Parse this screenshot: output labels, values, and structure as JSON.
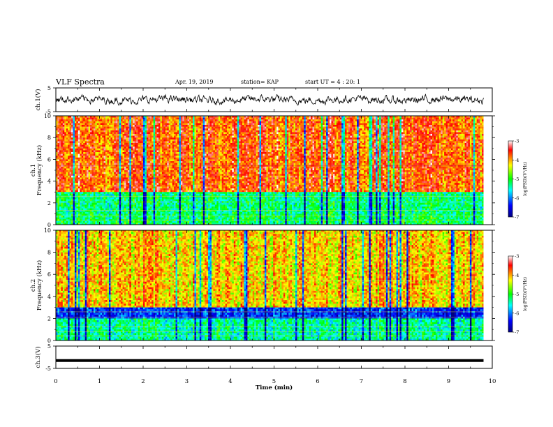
{
  "header": {
    "title": "VLF Spectra",
    "date": "Apr. 19, 2019",
    "station": "station= KAP",
    "start": "start  UT =   4 : 20: 1"
  },
  "chart_data": [
    {
      "type": "line",
      "panel": "waveform-ch1",
      "ylabel": "ch.1(V)",
      "ylim": [
        -5,
        5
      ],
      "yticks": [
        "5",
        "-5"
      ],
      "xlim": [
        0,
        10
      ],
      "series": [
        {
          "values_summary": "noisy signal fluctuating roughly between -1.5 and 1.5 V around 0 over 0–9.8 min"
        }
      ]
    },
    {
      "type": "heatmap",
      "panel": "spectrogram-ch1",
      "ylabel": "ch.1\nFrequency (kHz)",
      "ylabel_lines": [
        "ch.1",
        "Frequency (kHz)"
      ],
      "ylim": [
        0,
        10
      ],
      "yticks": [
        "0",
        "2",
        "4",
        "6",
        "8",
        "10"
      ],
      "xlim": [
        0,
        10
      ],
      "data_end_min": 9.8,
      "bands": [
        {
          "from_khz": 0,
          "to_khz": 1,
          "dominant_log_psd": -5.2
        },
        {
          "from_khz": 1,
          "to_khz": 3,
          "dominant_log_psd": -5.3
        },
        {
          "from_khz": 3,
          "to_khz": 10,
          "dominant_log_psd": -3.8
        }
      ],
      "colorbar": {
        "label": "log(PSD)(V²/Hz)",
        "min": -7,
        "max": -3,
        "ticks": [
          "-3",
          "-4",
          "-5",
          "-6",
          "-7"
        ]
      }
    },
    {
      "type": "heatmap",
      "panel": "spectrogram-ch2",
      "ylabel": "ch.2\nFrequency (kHz)",
      "ylabel_lines": [
        "ch.2",
        "Frequency (kHz)"
      ],
      "ylim": [
        0,
        10
      ],
      "yticks": [
        "0",
        "2",
        "4",
        "6",
        "8",
        "10"
      ],
      "xlim": [
        0,
        10
      ],
      "data_end_min": 9.8,
      "bands": [
        {
          "from_khz": 0,
          "to_khz": 2,
          "dominant_log_psd": -5.4
        },
        {
          "from_khz": 2,
          "to_khz": 3,
          "dominant_log_psd": -6.3
        },
        {
          "from_khz": 3,
          "to_khz": 10,
          "dominant_log_psd": -4.2
        }
      ],
      "colorbar": {
        "label": "log(PSD)(V²/Hz)",
        "min": -7,
        "max": -3,
        "ticks": [
          "-3",
          "-4",
          "-5",
          "-6",
          "-7"
        ]
      }
    },
    {
      "type": "line",
      "panel": "waveform-ch3",
      "ylabel": "ch.3(V)",
      "ylim": [
        -5,
        5
      ],
      "yticks": [
        "5",
        "-5"
      ],
      "xlim": [
        0,
        10
      ],
      "series": [
        {
          "values_summary": "flat line near -1.5 V from 0 to 9.8 min"
        }
      ]
    }
  ],
  "xaxis": {
    "label": "Time (min)",
    "ticks": [
      "0",
      "1",
      "2",
      "3",
      "4",
      "5",
      "6",
      "7",
      "8",
      "9",
      "10"
    ]
  },
  "colors": {
    "cmap": [
      "#00007f",
      "#0000ff",
      "#00ffff",
      "#00ff00",
      "#ffff00",
      "#ff0000",
      "#ffffff"
    ]
  }
}
